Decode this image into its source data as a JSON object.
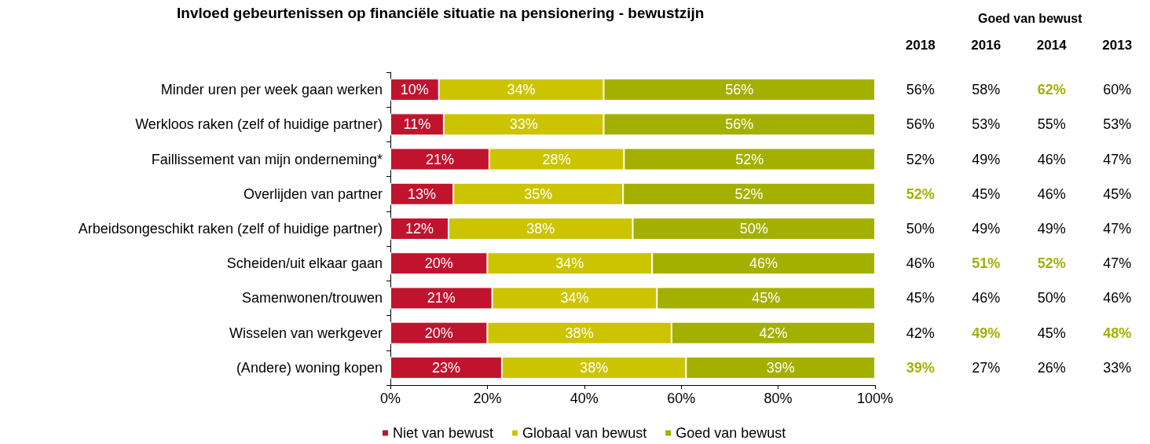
{
  "chart_data": [
    {
      "type": "bar",
      "orientation": "horizontal",
      "stacked": true,
      "title": "Invloed gebeurtenissen op financiële situatie na pensionering - bewustzijn",
      "categories": [
        "Minder uren per week gaan werken",
        "Werkloos raken (zelf of huidige partner)",
        "Faillissement van mijn onderneming*",
        "Overlijden van partner",
        "Arbeidsongeschikt raken (zelf of huidige partner)",
        "Scheiden/uit elkaar gaan",
        "Samenwonen/trouwen",
        "Wisselen van werkgever",
        "(Andere) woning kopen"
      ],
      "series": [
        {
          "name": "Niet van bewust",
          "color": "#c0142e",
          "values": [
            10,
            11,
            20.4,
            13,
            12,
            20,
            21,
            20,
            23
          ]
        },
        {
          "name": "Globaal van bewust",
          "color": "#cdc400",
          "values": [
            34,
            33,
            27.8,
            35,
            38,
            34,
            34,
            38,
            38
          ]
        },
        {
          "name": "Goed van bewust",
          "color": "#a4b000",
          "values": [
            56,
            56,
            51.8,
            52,
            50,
            46,
            45,
            42,
            39
          ]
        }
      ],
      "xlim": [
        0,
        100
      ],
      "xticks": [
        {
          "value": 0,
          "label": "0%"
        },
        {
          "value": 20,
          "label": "20%"
        },
        {
          "value": 40,
          "label": "40%"
        },
        {
          "value": 60,
          "label": "60%"
        },
        {
          "value": 80,
          "label": "80%"
        },
        {
          "value": 100,
          "label": "100%"
        }
      ],
      "value_labels": [
        [
          "10%",
          "11%",
          "21%",
          "13%",
          "12%",
          "20%",
          "21%",
          "20%",
          "23%"
        ],
        [
          "34%",
          "33%",
          "28%",
          "35%",
          "38%",
          "34%",
          "34%",
          "38%",
          "38%"
        ],
        [
          "56%",
          "56%",
          "52%",
          "52%",
          "50%",
          "46%",
          "45%",
          "42%",
          "39%"
        ]
      ],
      "grid": false,
      "legend": "bottom",
      "marker": "square"
    },
    {
      "type": "heatmap",
      "title": "Goed van bewust",
      "categories": [
        "2018",
        "2016",
        "2014",
        "2013"
      ],
      "y_categories": [
        null,
        null,
        null,
        null,
        null,
        null,
        null,
        null,
        null
      ],
      "cells": [
        [
          56,
          58,
          62,
          60
        ],
        [
          56,
          53,
          55,
          53
        ],
        [
          52,
          49,
          46,
          47
        ],
        [
          52,
          45,
          46,
          45
        ],
        [
          50,
          49,
          49,
          47
        ],
        [
          46,
          51,
          52,
          47
        ],
        [
          45,
          46,
          50,
          46
        ],
        [
          42,
          49,
          45,
          48
        ],
        [
          39,
          27,
          26,
          33
        ]
      ],
      "cell_labels": [
        [
          "56%",
          "58%",
          "62%",
          "60%"
        ],
        [
          "56%",
          "53%",
          "55%",
          "53%"
        ],
        [
          "52%",
          "49%",
          "46%",
          "47%"
        ],
        [
          "52%",
          "45%",
          "46%",
          "45%"
        ],
        [
          "50%",
          "49%",
          "49%",
          "47%"
        ],
        [
          "46%",
          "51%",
          "52%",
          "47%"
        ],
        [
          "45%",
          "46%",
          "50%",
          "46%"
        ],
        [
          "42%",
          "49%",
          "45%",
          "48%"
        ],
        [
          "39%",
          "27%",
          "26%",
          "33%"
        ]
      ],
      "colors": [
        [
          "#000000",
          "#000000",
          "#a4b000",
          "#000000"
        ],
        [
          "#000000",
          "#000000",
          "#000000",
          "#000000"
        ],
        [
          "#000000",
          "#000000",
          "#000000",
          "#000000"
        ],
        [
          "#a4b000",
          "#000000",
          "#000000",
          "#000000"
        ],
        [
          "#000000",
          "#000000",
          "#000000",
          "#000000"
        ],
        [
          "#000000",
          "#a4b000",
          "#a4b000",
          "#000000"
        ],
        [
          "#000000",
          "#000000",
          "#000000",
          "#000000"
        ],
        [
          "#000000",
          "#a4b000",
          "#000000",
          "#a4b000"
        ],
        [
          "#a4b000",
          "#000000",
          "#000000",
          "#000000"
        ]
      ]
    }
  ]
}
